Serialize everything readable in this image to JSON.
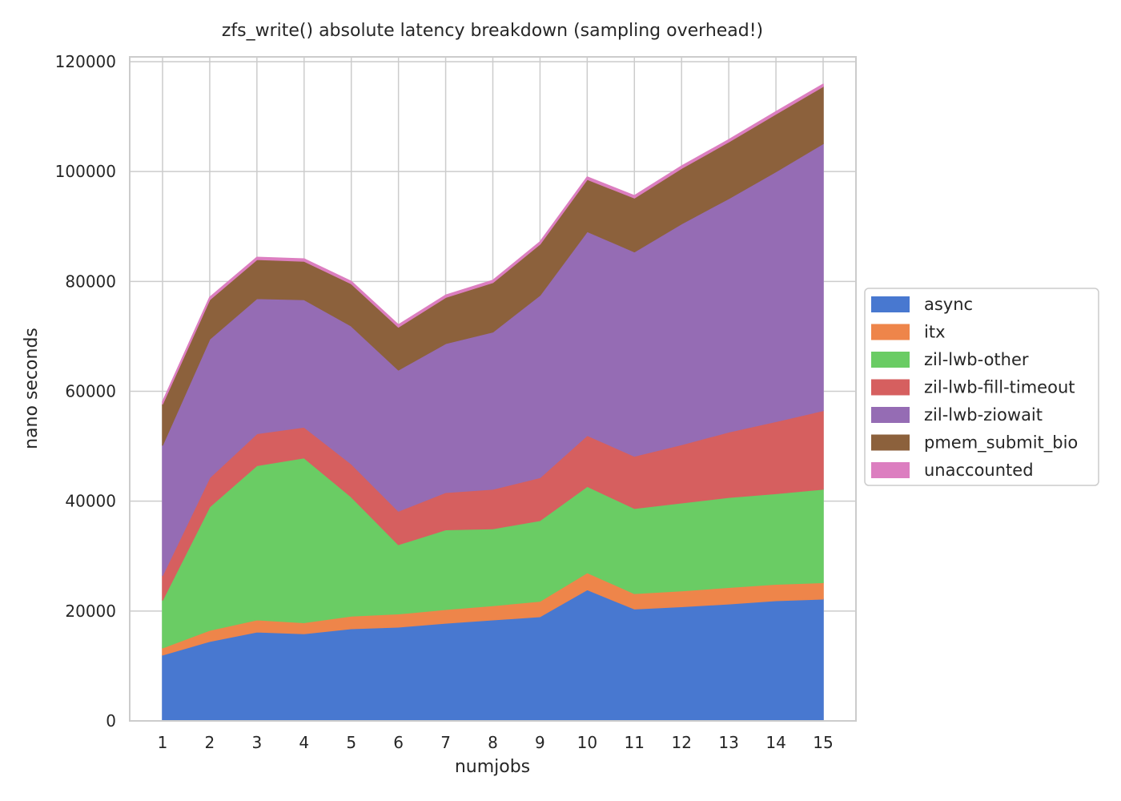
{
  "chart_data": {
    "type": "area",
    "stacked": true,
    "title": "zfs_write() absolute latency breakdown (sampling overhead!)",
    "xlabel": "numjobs",
    "ylabel": "nano seconds",
    "x": [
      1,
      2,
      3,
      4,
      5,
      6,
      7,
      8,
      9,
      10,
      11,
      12,
      13,
      14,
      15
    ],
    "ylim": [
      0,
      120000
    ],
    "yticks": [
      0,
      20000,
      40000,
      60000,
      80000,
      100000,
      120000
    ],
    "grid": true,
    "legend_position": "right",
    "series": [
      {
        "name": "async",
        "color": "#4878d0",
        "values": [
          12000,
          14500,
          16200,
          15900,
          16800,
          17100,
          17800,
          18400,
          19000,
          23900,
          20400,
          20800,
          21300,
          21900,
          22200
        ]
      },
      {
        "name": "itx",
        "color": "#ee854a",
        "values": [
          1300,
          2000,
          2200,
          2000,
          2300,
          2400,
          2500,
          2600,
          2800,
          3100,
          2800,
          2900,
          3000,
          3000,
          3000
        ]
      },
      {
        "name": "zil-lwb-other",
        "color": "#6acc64",
        "values": [
          8700,
          22500,
          28100,
          30000,
          21700,
          12600,
          14500,
          14000,
          14700,
          15700,
          15500,
          16000,
          16400,
          16500,
          17000
        ]
      },
      {
        "name": "zil-lwb-fill-timeout",
        "color": "#d65f5f",
        "values": [
          4500,
          5300,
          5800,
          5600,
          6000,
          6100,
          6800,
          7200,
          7800,
          9300,
          9500,
          10600,
          11900,
          13100,
          14300
        ]
      },
      {
        "name": "zil-lwb-ziowait",
        "color": "#956cb4",
        "values": [
          23700,
          25200,
          24600,
          23200,
          25100,
          25700,
          27100,
          28600,
          33200,
          37100,
          37200,
          40200,
          42500,
          45500,
          48600
        ]
      },
      {
        "name": "pmem_submit_bio",
        "color": "#8c613c",
        "values": [
          7500,
          7200,
          7100,
          7000,
          7700,
          7800,
          8400,
          9000,
          9300,
          9500,
          9800,
          10100,
          10300,
          10500,
          10400
        ]
      },
      {
        "name": "unaccounted",
        "color": "#dc7ec0",
        "values": [
          400,
          400,
          400,
          400,
          400,
          400,
          400,
          400,
          400,
          400,
          400,
          400,
          400,
          400,
          400
        ]
      }
    ]
  }
}
